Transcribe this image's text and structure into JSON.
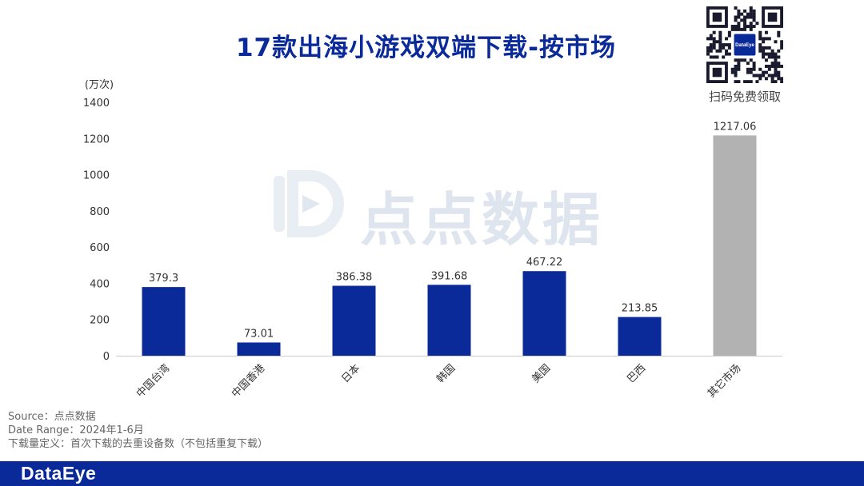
{
  "title": "17款出海小游戏双端下载-按市场",
  "qr_caption": "扫码免费领取",
  "qr_logo_text": "DataEye",
  "watermark_text": "点点数据",
  "footnotes": {
    "source": "Source：点点数据",
    "date_range": "Date Range：2024年1-6月",
    "definition": "下载量定义：首次下载的去重设备数（不包括重复下载）"
  },
  "footer_logo": "DataEye",
  "colors": {
    "primary": "#0b2a9a",
    "other": "#b2b2b2"
  },
  "chart_data": {
    "type": "bar",
    "title": "17款出海小游戏双端下载-按市场",
    "ylabel": "(万次)",
    "categories": [
      "中国台湾",
      "中国香港",
      "日本",
      "韩国",
      "美国",
      "巴西",
      "其它市场"
    ],
    "values": [
      379.3,
      73.01,
      386.38,
      391.68,
      467.22,
      213.85,
      1217.06
    ],
    "data_labels": [
      "379.3",
      "73.01",
      "386.38",
      "391.68",
      "467.22",
      "213.85",
      "1217.06"
    ],
    "ylim": [
      0,
      1400
    ],
    "yticks": [
      0,
      200,
      400,
      600,
      800,
      1000,
      1200,
      1400
    ],
    "grid": false,
    "legend": "none",
    "bar_colors": [
      "#0b2a9a",
      "#0b2a9a",
      "#0b2a9a",
      "#0b2a9a",
      "#0b2a9a",
      "#0b2a9a",
      "#b2b2b2"
    ]
  }
}
